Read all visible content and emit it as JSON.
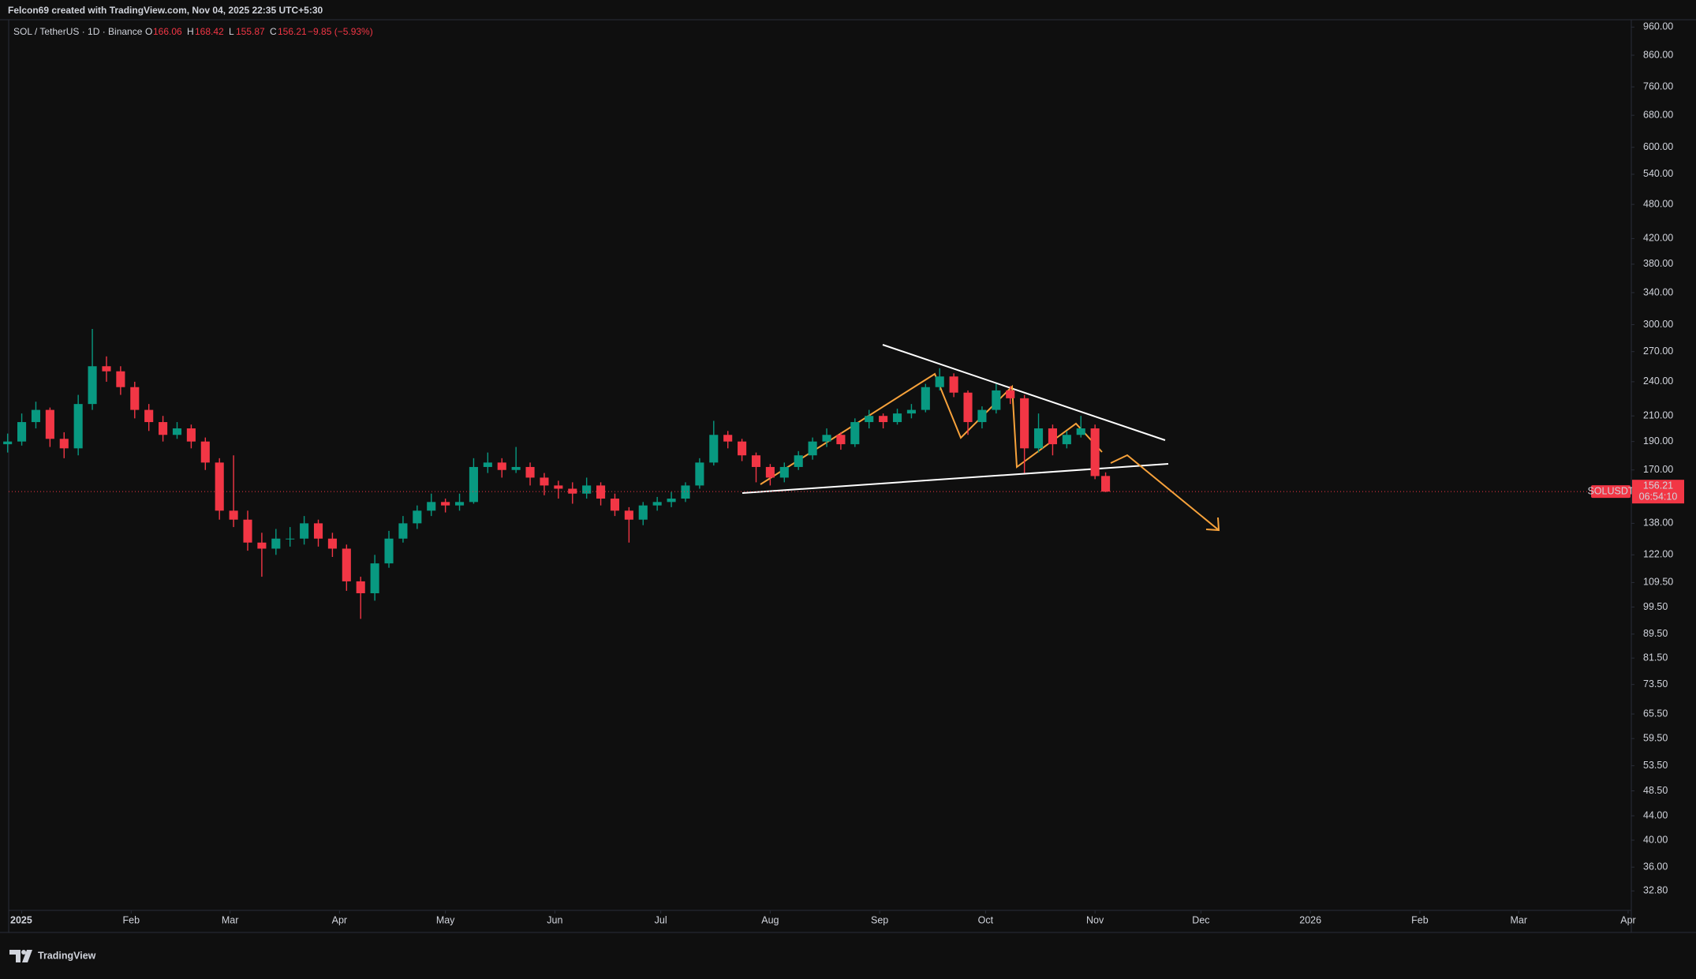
{
  "header": {
    "attribution": "Felcon69 created with TradingView.com, Nov 04, 2025 22:35 UTC+5:30",
    "symbol": "SOL / TetherUS · 1D · Binance",
    "open_label": "O",
    "high_label": "H",
    "low_label": "L",
    "close_label": "C",
    "change": "−9.85 (−5.93%)"
  },
  "chart_data": {
    "type": "candlestick",
    "log_scale": true,
    "grid": false,
    "up_color": "#089981",
    "down_color": "#f23645",
    "ylim": [
      30.4,
      988
    ],
    "yticks": [
      {
        "value": 960,
        "label": "960.00"
      },
      {
        "value": 860,
        "label": "860.00"
      },
      {
        "value": 760,
        "label": "760.00"
      },
      {
        "value": 680,
        "label": "680.00"
      },
      {
        "value": 600,
        "label": "600.00"
      },
      {
        "value": 540,
        "label": "540.00"
      },
      {
        "value": 480,
        "label": "480.00"
      },
      {
        "value": 420,
        "label": "420.00"
      },
      {
        "value": 380,
        "label": "380.00"
      },
      {
        "value": 340,
        "label": "340.00"
      },
      {
        "value": 300,
        "label": "300.00"
      },
      {
        "value": 270,
        "label": "270.00"
      },
      {
        "value": 240,
        "label": "240.00"
      },
      {
        "value": 210,
        "label": "210.00"
      },
      {
        "value": 190,
        "label": "190.00"
      },
      {
        "value": 170,
        "label": "170.00"
      },
      {
        "value": 138,
        "label": "138.00"
      },
      {
        "value": 122,
        "label": "122.00"
      },
      {
        "value": 109.5,
        "label": "109.50"
      },
      {
        "value": 99.5,
        "label": "99.50"
      },
      {
        "value": 89.5,
        "label": "89.50"
      },
      {
        "value": 81.5,
        "label": "81.50"
      },
      {
        "value": 73.5,
        "label": "73.50"
      },
      {
        "value": 65.5,
        "label": "65.50"
      },
      {
        "value": 59.5,
        "label": "59.50"
      },
      {
        "value": 53.5,
        "label": "53.50"
      },
      {
        "value": 48.5,
        "label": "48.50"
      },
      {
        "value": 44,
        "label": "44.00"
      },
      {
        "value": 40,
        "label": "40.00"
      },
      {
        "value": 36,
        "label": "36.00"
      },
      {
        "value": 32.8,
        "label": "32.80"
      }
    ],
    "xlim": [
      -3.7,
      455.9
    ],
    "xticks": [
      {
        "value": 0,
        "label": "2025"
      },
      {
        "value": 31,
        "label": "Feb"
      },
      {
        "value": 59,
        "label": "Mar"
      },
      {
        "value": 90,
        "label": "Apr"
      },
      {
        "value": 120,
        "label": "May"
      },
      {
        "value": 151,
        "label": "Jun"
      },
      {
        "value": 181,
        "label": "Jul"
      },
      {
        "value": 212,
        "label": "Aug"
      },
      {
        "value": 243,
        "label": "Sep"
      },
      {
        "value": 273,
        "label": "Oct"
      },
      {
        "value": 304,
        "label": "Nov"
      },
      {
        "value": 334,
        "label": "Dec"
      },
      {
        "value": 365,
        "label": "2026"
      },
      {
        "value": 396,
        "label": "Feb"
      },
      {
        "value": 424,
        "label": "Mar"
      },
      {
        "value": 455,
        "label": "Apr"
      }
    ],
    "x": [
      -4,
      0,
      4,
      8,
      12,
      16,
      20,
      24,
      28,
      32,
      36,
      40,
      44,
      48,
      52,
      56,
      60,
      64,
      68,
      72,
      76,
      80,
      84,
      88,
      92,
      96,
      100,
      104,
      108,
      112,
      116,
      120,
      124,
      128,
      132,
      136,
      140,
      144,
      148,
      152,
      156,
      160,
      164,
      168,
      172,
      176,
      180,
      184,
      188,
      192,
      196,
      200,
      204,
      208,
      212,
      216,
      220,
      224,
      228,
      232,
      236,
      240,
      244,
      248,
      252,
      256,
      260,
      264,
      268,
      272,
      276,
      280,
      284,
      288,
      292,
      296,
      300,
      304,
      307
    ],
    "open": [
      188,
      190,
      205,
      215,
      192,
      185,
      220,
      255,
      250,
      235,
      215,
      205,
      195,
      200,
      190,
      175,
      145,
      140,
      128,
      125,
      130,
      130,
      138,
      130,
      125,
      110,
      105,
      118,
      130,
      138,
      145,
      150,
      148,
      150,
      172,
      175,
      170,
      172,
      165,
      160,
      158,
      155,
      160,
      152,
      145,
      140,
      148,
      150,
      152,
      160,
      175,
      195,
      190,
      180,
      172,
      165,
      172,
      180,
      190,
      195,
      188,
      205,
      210,
      205,
      212,
      215,
      235,
      245,
      230,
      205,
      215,
      232,
      225,
      185,
      200,
      188,
      195,
      200,
      166.06
    ],
    "high": [
      196,
      212,
      222,
      217,
      197,
      228,
      295,
      265,
      255,
      240,
      220,
      210,
      205,
      203,
      193,
      178,
      180,
      145,
      133,
      135,
      136,
      142,
      140,
      133,
      127,
      112,
      122,
      134,
      142,
      148,
      155,
      152,
      155,
      178,
      182,
      178,
      186,
      175,
      168,
      163,
      162,
      165,
      162,
      155,
      147,
      150,
      153,
      156,
      162,
      178,
      206,
      198,
      192,
      182,
      174,
      175,
      183,
      193,
      200,
      197,
      208,
      215,
      212,
      216,
      220,
      238,
      253,
      248,
      232,
      218,
      238,
      236,
      228,
      212,
      203,
      198,
      210,
      203,
      168.42
    ],
    "low": [
      182,
      187,
      200,
      186,
      178,
      180,
      215,
      240,
      228,
      208,
      198,
      190,
      192,
      185,
      170,
      140,
      136,
      124,
      112,
      122,
      126,
      127,
      126,
      121,
      106,
      95,
      102,
      116,
      128,
      135,
      142,
      144,
      145,
      149,
      168,
      165,
      168,
      160,
      154,
      152,
      149,
      152,
      148,
      142,
      128,
      137,
      145,
      147,
      150,
      158,
      173,
      185,
      176,
      162,
      160,
      162,
      170,
      177,
      186,
      184,
      186,
      200,
      200,
      203,
      208,
      213,
      232,
      226,
      195,
      200,
      212,
      220,
      168,
      182,
      180,
      185,
      193,
      164,
      155.87
    ],
    "close": [
      190,
      205,
      215,
      192,
      185,
      220,
      255,
      250,
      235,
      215,
      205,
      195,
      200,
      190,
      175,
      145,
      140,
      128,
      125,
      130,
      130,
      138,
      130,
      125,
      110,
      105,
      118,
      130,
      138,
      145,
      150,
      148,
      150,
      172,
      175,
      170,
      172,
      165,
      160,
      158,
      155,
      160,
      152,
      145,
      140,
      148,
      150,
      152,
      160,
      175,
      195,
      190,
      180,
      172,
      165,
      172,
      180,
      190,
      195,
      188,
      205,
      210,
      205,
      212,
      215,
      235,
      245,
      230,
      205,
      215,
      232,
      225,
      185,
      200,
      188,
      195,
      200,
      166,
      156.21
    ],
    "price_tag": {
      "symbol": "SOLUSDT",
      "countdown": "06:54:10"
    }
  },
  "footer": {
    "brand": "TradingView"
  }
}
